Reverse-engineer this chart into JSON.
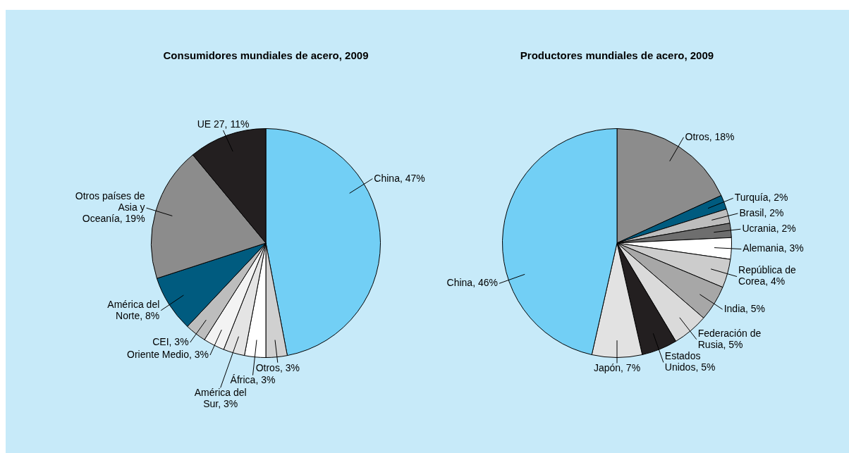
{
  "chart_data": [
    {
      "type": "pie",
      "title": "Consumidores mundiales de acero, 2009",
      "categories": [
        "China",
        "Otros",
        "África",
        "América del Sur",
        "Oriente Medio",
        "CEI",
        "América del Norte",
        "Otros países de Asia y Oceanía",
        "UE 27"
      ],
      "values": [
        47,
        3,
        3,
        3,
        3,
        3,
        8,
        19,
        11
      ],
      "value_labels": [
        "47%",
        "3%",
        "3%",
        "3%",
        "3%",
        "3%",
        "8%",
        "19%",
        "11%"
      ],
      "colors": [
        "#72cff5",
        "#d0d0d0",
        "#ffffff",
        "#e4e4e4",
        "#f3f3f3",
        "#bdbdbd",
        "#005b7f",
        "#8c8c8c",
        "#231f20"
      ]
    },
    {
      "type": "pie",
      "title": "Productores mundiales de acero, 2009",
      "categories": [
        "Otros",
        "Turquía",
        "Brasil",
        "Ucrania",
        "Alemania",
        "República de Corea",
        "India",
        "Federación de Rusia",
        "Estados Unidos",
        "Japón",
        "China"
      ],
      "values": [
        18,
        2,
        2,
        2,
        3,
        4,
        5,
        5,
        5,
        7,
        46
      ],
      "value_labels": [
        "18%",
        "2%",
        "2%",
        "2%",
        "3%",
        "4%",
        "5%",
        "5%",
        "5%",
        "7%",
        "46%"
      ],
      "colors": [
        "#8c8c8c",
        "#005b7f",
        "#bdbdbd",
        "#6e6e6e",
        "#ffffff",
        "#cccccc",
        "#a7a7a7",
        "#dadada",
        "#231f20",
        "#e2e2e2",
        "#72cff5"
      ]
    }
  ]
}
